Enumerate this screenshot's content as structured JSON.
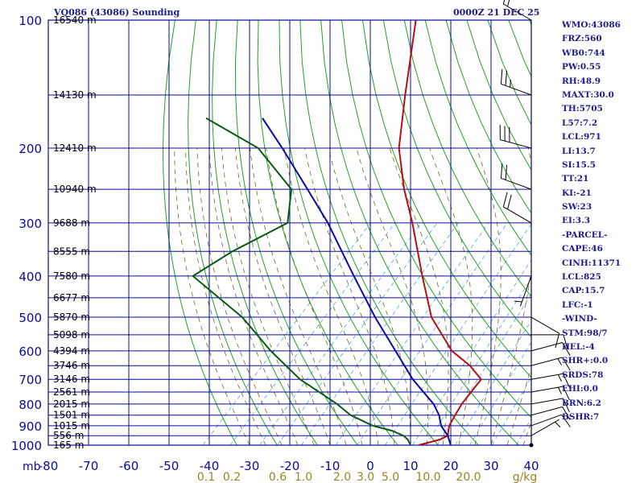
{
  "header": {
    "station": "VQ086 (43086) Sounding",
    "time": "0000Z 21 DEC 25"
  },
  "indices": [
    "WMO:43086",
    "FRZ:560",
    "WB0:744",
    "PW:0.55",
    "RH:48.9",
    "MAXT:30.0",
    "TH:5705",
    "L57:7.2",
    "LCL:971",
    "LI:13.7",
    "SI:15.5",
    "TT:21",
    "KI:-21",
    "SW:23",
    "EI:3.3",
    "-PARCEL-",
    "CAPE:46",
    "CINH:11371",
    "LCL:825",
    "CAP:15.7",
    "LFC:-1",
    "-WIND-",
    "STM:98/7",
    "HEL:-4",
    "SHR+:0.0",
    "SRDS:78",
    "EHI:0.0",
    "BRN:6.2",
    "BSHR:7"
  ],
  "colors": {
    "frame": "#0a0a96",
    "dry_adiabat": "#22a022",
    "moist_adiabat": "#6b6b1f",
    "mixing_ratio": "#4aa6e6",
    "temperature": "#b41010",
    "dewpoint": "#0a5a14",
    "parcel": "#0a0aa8",
    "index_text": "#1c1c8c",
    "mixing_ratio_labels": "#9a8422"
  },
  "chart_data": {
    "type": "line",
    "title": "VQ086 (43086) Sounding",
    "xlabel": "",
    "ylabel": "mb",
    "xlim": [
      -80,
      40
    ],
    "ylim": [
      1000,
      100
    ],
    "y_scale": "log",
    "grid": true,
    "pressure_ticks": [
      100,
      200,
      300,
      400,
      500,
      600,
      700,
      800,
      900,
      1000
    ],
    "temperature_ticks": [
      -80,
      -70,
      -60,
      -50,
      -40,
      -30,
      -20,
      -10,
      0,
      10,
      20,
      30,
      40
    ],
    "temperature_tick_labels": [
      "-80",
      "-70",
      "-60",
      "-50",
      "-40",
      "-30",
      "-20",
      "-10",
      "0",
      "10",
      "20",
      "30",
      "40"
    ],
    "mixing_ratio_labels": [
      "0.1",
      "0.2",
      "0.6",
      "1.0",
      "2.0",
      "3.0",
      "5.0",
      "10.0",
      "20.0",
      "g/kg"
    ],
    "height_labels": [
      {
        "p": 100,
        "text": "16540 m"
      },
      {
        "p": 150,
        "text": "14130 m"
      },
      {
        "p": 200,
        "text": "12410 m"
      },
      {
        "p": 250,
        "text": "10940 m"
      },
      {
        "p": 300,
        "text": "9688 m"
      },
      {
        "p": 350,
        "text": "8555 m"
      },
      {
        "p": 400,
        "text": "7580 m"
      },
      {
        "p": 450,
        "text": "6677 m"
      },
      {
        "p": 500,
        "text": "5870 m"
      },
      {
        "p": 550,
        "text": "5098 m"
      },
      {
        "p": 600,
        "text": "4394 m"
      },
      {
        "p": 650,
        "text": "3746 m"
      },
      {
        "p": 700,
        "text": "3146 m"
      },
      {
        "p": 750,
        "text": "2561 m"
      },
      {
        "p": 800,
        "text": "2015 m"
      },
      {
        "p": 850,
        "text": "1501 m"
      },
      {
        "p": 900,
        "text": "1015 m"
      },
      {
        "p": 950,
        "text": "556 m"
      },
      {
        "p": 1000,
        "text": "165 m"
      }
    ],
    "series": [
      {
        "key": "temperature",
        "points": [
          [
            1000,
            12
          ],
          [
            970,
            16
          ],
          [
            950,
            17
          ],
          [
            925,
            16
          ],
          [
            900,
            15
          ],
          [
            850,
            14
          ],
          [
            800,
            13
          ],
          [
            750,
            12.5
          ],
          [
            700,
            12
          ],
          [
            650,
            6
          ],
          [
            600,
            -2
          ],
          [
            500,
            -15
          ],
          [
            400,
            -27
          ],
          [
            300,
            -42
          ],
          [
            250,
            -52
          ],
          [
            200,
            -63
          ],
          [
            150,
            -74
          ],
          [
            100,
            -89
          ]
        ]
      },
      {
        "key": "dewpoint",
        "points": [
          [
            1000,
            10
          ],
          [
            970,
            8
          ],
          [
            950,
            6
          ],
          [
            925,
            2
          ],
          [
            900,
            -4
          ],
          [
            850,
            -12
          ],
          [
            800,
            -18
          ],
          [
            700,
            -33
          ],
          [
            600,
            -47
          ],
          [
            500,
            -62
          ],
          [
            400,
            -84
          ],
          [
            350,
            -80
          ],
          [
            300,
            -73
          ],
          [
            250,
            -80
          ],
          [
            200,
            -98
          ],
          [
            170,
            -118
          ]
        ]
      },
      {
        "key": "parcel",
        "points": [
          [
            1000,
            20
          ],
          [
            950,
            17
          ],
          [
            900,
            13
          ],
          [
            850,
            10
          ],
          [
            800,
            6
          ],
          [
            700,
            -5
          ],
          [
            600,
            -16
          ],
          [
            500,
            -29
          ],
          [
            400,
            -44
          ],
          [
            300,
            -63
          ],
          [
            250,
            -76
          ],
          [
            200,
            -92
          ],
          [
            170,
            -104
          ]
        ]
      }
    ],
    "wind_barbs": [
      {
        "p": 100,
        "dir": 300,
        "spd": 15
      },
      {
        "p": 150,
        "dir": 290,
        "spd": 25
      },
      {
        "p": 200,
        "dir": 285,
        "spd": 30
      },
      {
        "p": 250,
        "dir": 290,
        "spd": 20
      },
      {
        "p": 300,
        "dir": 300,
        "spd": 20
      },
      {
        "p": 400,
        "dir": 200,
        "spd": 5
      },
      {
        "p": 500,
        "dir": 120,
        "spd": 10
      },
      {
        "p": 550,
        "dir": 90,
        "spd": 10
      },
      {
        "p": 600,
        "dir": 75,
        "spd": 10
      },
      {
        "p": 650,
        "dir": 75,
        "spd": 15
      },
      {
        "p": 700,
        "dir": 80,
        "spd": 15
      },
      {
        "p": 750,
        "dir": 80,
        "spd": 15
      },
      {
        "p": 800,
        "dir": 80,
        "spd": 10
      },
      {
        "p": 850,
        "dir": 75,
        "spd": 10
      },
      {
        "p": 900,
        "dir": 70,
        "spd": 10
      },
      {
        "p": 950,
        "dir": 60,
        "spd": 5
      },
      {
        "p": 1000,
        "dir": 0,
        "spd": 0
      }
    ]
  }
}
